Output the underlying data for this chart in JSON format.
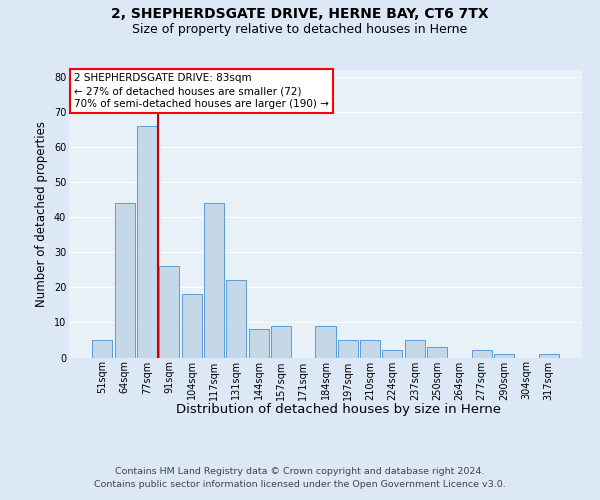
{
  "title1": "2, SHEPHERDSGATE DRIVE, HERNE BAY, CT6 7TX",
  "title2": "Size of property relative to detached houses in Herne",
  "xlabel": "Distribution of detached houses by size in Herne",
  "ylabel": "Number of detached properties",
  "categories": [
    "51sqm",
    "64sqm",
    "77sqm",
    "91sqm",
    "104sqm",
    "117sqm",
    "131sqm",
    "144sqm",
    "157sqm",
    "171sqm",
    "184sqm",
    "197sqm",
    "210sqm",
    "224sqm",
    "237sqm",
    "250sqm",
    "264sqm",
    "277sqm",
    "290sqm",
    "304sqm",
    "317sqm"
  ],
  "values": [
    5,
    44,
    66,
    26,
    18,
    44,
    22,
    8,
    9,
    0,
    9,
    5,
    5,
    2,
    5,
    3,
    0,
    2,
    1,
    0,
    1
  ],
  "bar_color": "#c5d8e8",
  "bar_edge_color": "#5b9bd5",
  "annotation_text": "2 SHEPHERDSGATE DRIVE: 83sqm\n← 27% of detached houses are smaller (72)\n70% of semi-detached houses are larger (190) →",
  "vline_color": "#cc0000",
  "ylim": [
    0,
    82
  ],
  "yticks": [
    0,
    10,
    20,
    30,
    40,
    50,
    60,
    70,
    80
  ],
  "footer": "Contains HM Land Registry data © Crown copyright and database right 2024.\nContains public sector information licensed under the Open Government Licence v3.0.",
  "bg_color": "#dce8f5",
  "plot_bg_color": "#e8f0f8",
  "grid_color": "#ffffff",
  "title1_fontsize": 10,
  "title2_fontsize": 9,
  "xlabel_fontsize": 9.5,
  "ylabel_fontsize": 8.5,
  "tick_fontsize": 7,
  "footer_fontsize": 6.8,
  "ann_fontsize": 7.5
}
